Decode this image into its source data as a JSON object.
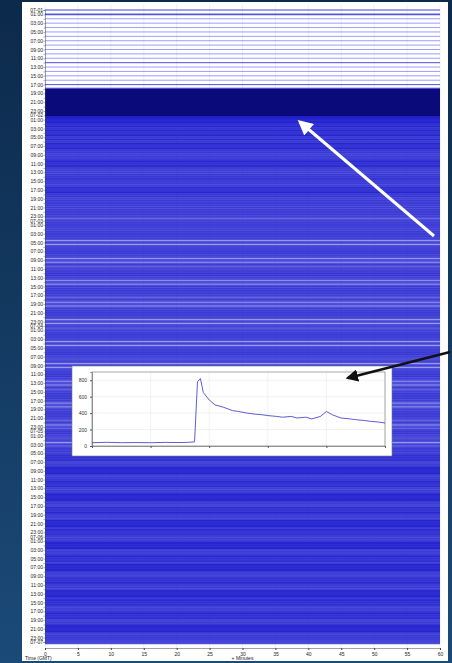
{
  "chart_data": [
    {
      "type": "helicorder",
      "xlabel": "+ Minutes",
      "ylabel": "Time (GMT)",
      "color": "#2323d0",
      "xlim": [
        0,
        60
      ],
      "xticks": [
        0,
        5,
        10,
        15,
        20,
        25,
        30,
        35,
        40,
        45,
        50,
        55,
        60
      ],
      "categories": [
        "07-01",
        "01:00",
        null,
        "03:00",
        null,
        "05:00",
        null,
        "07:00",
        null,
        "09:00",
        null,
        "11:00",
        null,
        "13:00",
        null,
        "15:00",
        null,
        "17:00",
        null,
        "19:00",
        null,
        "21:00",
        null,
        "23:00",
        "07-02",
        "01:00",
        null,
        "03:00",
        null,
        "05:00",
        null,
        "07:00",
        null,
        "09:00",
        null,
        "11:00",
        null,
        "13:00",
        null,
        "15:00",
        null,
        "17:00",
        null,
        "19:00",
        null,
        "21:00",
        null,
        "23:00",
        "07-03",
        "01:00",
        null,
        "03:00",
        null,
        "05:00",
        null,
        "07:00",
        null,
        "09:00",
        null,
        "11:00",
        null,
        "13:00",
        null,
        "15:00",
        null,
        "17:00",
        null,
        "19:00",
        null,
        "21:00",
        null,
        "23:00",
        "07-04",
        "01:00",
        null,
        "03:00",
        null,
        "05:00",
        null,
        "07:00",
        null,
        "09:00",
        null,
        "11:00",
        null,
        "13:00",
        null,
        "15:00",
        null,
        "17:00",
        null,
        "19:00",
        null,
        "21:00",
        null,
        "23:00",
        "07-05",
        "01:00",
        null,
        "03:00",
        null,
        "05:00",
        null,
        "07:00",
        null,
        "09:00",
        null,
        "11:00",
        null,
        "13:00",
        null,
        "15:00",
        null,
        "17:00",
        null,
        "19:00",
        null,
        "21:00",
        null,
        "23:00",
        "07-06",
        "01:00",
        null,
        "03:00",
        null,
        "05:00",
        null,
        "07:00",
        null,
        "09:00",
        null,
        "11:00",
        null,
        "13:00",
        null,
        "15:00",
        null,
        "17:00",
        null,
        "19:00",
        null,
        "21:00",
        null,
        "23:00",
        "07-07"
      ],
      "values": [
        1,
        2,
        0,
        0,
        0,
        0,
        0,
        0,
        0,
        0,
        0,
        0,
        1,
        0,
        0,
        0,
        0,
        1,
        3,
        10,
        10,
        10,
        10,
        10,
        9,
        8,
        7,
        6,
        7,
        6,
        6,
        7,
        6,
        5,
        6,
        7,
        6,
        5,
        6,
        6,
        5,
        7,
        6,
        5,
        6,
        5,
        6,
        5,
        5,
        6,
        5,
        6,
        5,
        4,
        5,
        6,
        5,
        4,
        5,
        5,
        6,
        5,
        4,
        5,
        6,
        5,
        5,
        4,
        5,
        6,
        5,
        4,
        5,
        5,
        6,
        5,
        4,
        5,
        6,
        5,
        5,
        4,
        5,
        6,
        5,
        4,
        5,
        5,
        6,
        5,
        4,
        5,
        6,
        5,
        5,
        4,
        6,
        5,
        5,
        4,
        6,
        5,
        7,
        5,
        6,
        8,
        5,
        6,
        7,
        5,
        6,
        8,
        6,
        5,
        7,
        6,
        5,
        8,
        6,
        7,
        5,
        6,
        8,
        5,
        6,
        7,
        5,
        8,
        6,
        5,
        7,
        6,
        5,
        8,
        6,
        7,
        5,
        6,
        7,
        5,
        6,
        8,
        5,
        6,
        5
      ]
    },
    {
      "type": "line",
      "color": "#3333cc",
      "grid": true,
      "tick_labels": "y",
      "xlim": [
        0,
        100
      ],
      "xticks": [
        0,
        20,
        40,
        60,
        80,
        100
      ],
      "ylim": [
        0,
        900
      ],
      "yticks": [
        0,
        200,
        400,
        600,
        800
      ],
      "x": [
        0,
        5,
        10,
        15,
        20,
        25,
        30,
        33,
        35,
        36,
        37,
        38,
        40,
        42,
        45,
        48,
        50,
        53,
        55,
        58,
        60,
        63,
        65,
        68,
        70,
        73,
        75,
        78,
        80,
        82,
        85,
        88,
        90,
        93,
        95,
        98,
        100
      ],
      "values": [
        40,
        45,
        40,
        42,
        40,
        44,
        42,
        45,
        50,
        780,
        820,
        650,
        560,
        500,
        470,
        430,
        420,
        400,
        390,
        380,
        370,
        360,
        350,
        360,
        340,
        350,
        330,
        360,
        420,
        380,
        340,
        330,
        320,
        310,
        300,
        290,
        280
      ]
    }
  ]
}
